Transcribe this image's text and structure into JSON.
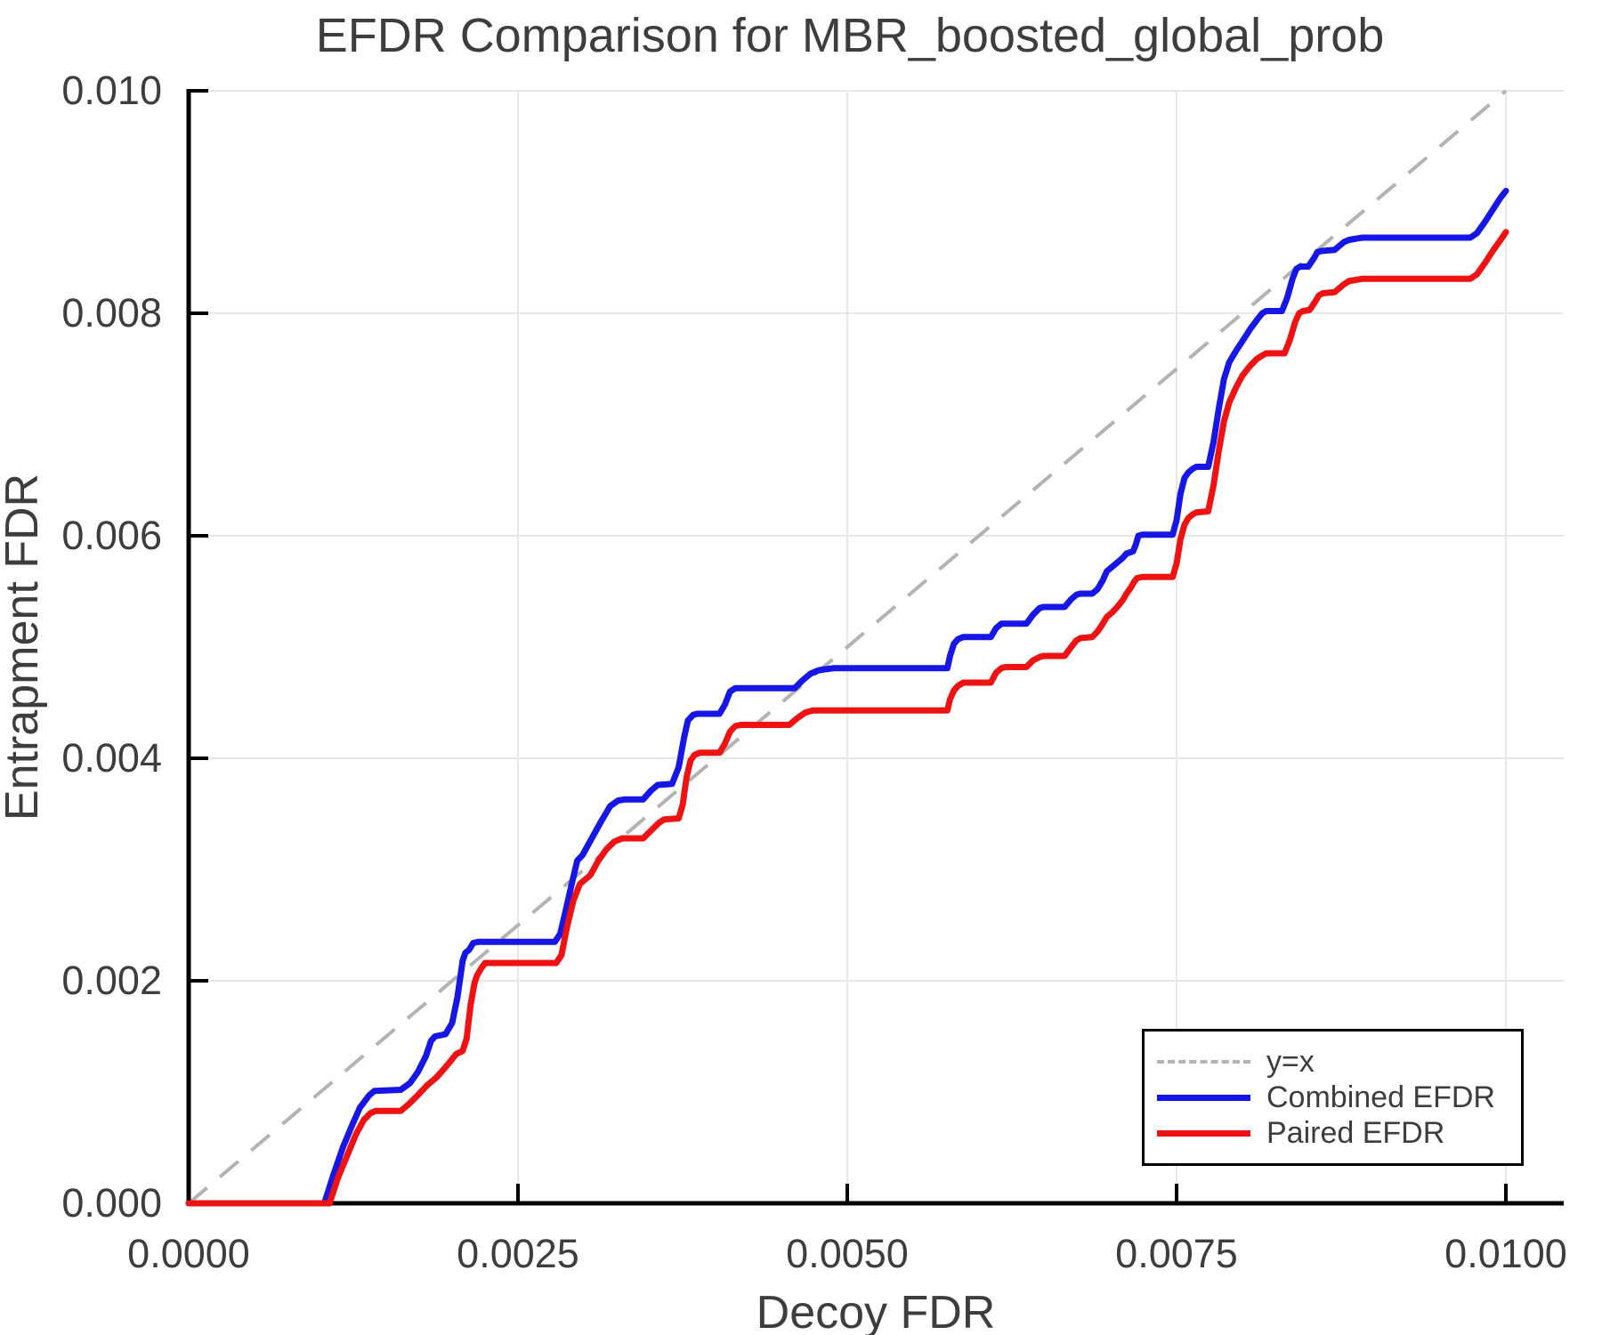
{
  "title": "EFDR Comparison for MBR_boosted_global_prob",
  "axes": {
    "xlabel": "Decoy FDR",
    "ylabel": "Entrapment FDR"
  },
  "legend": {
    "items": [
      {
        "label": "y=x",
        "color": "#b3b3b3",
        "style": "dashed"
      },
      {
        "label": "Combined EFDR",
        "color": "#1616e6",
        "style": "solid"
      },
      {
        "label": "Paired EFDR",
        "color": "#ef1212",
        "style": "solid"
      }
    ]
  },
  "colors": {
    "text": "#3d3d3d",
    "grid": "#e7e7e7",
    "spine": "#000000",
    "reference": "#b3b3b3",
    "combined": "#1616e6",
    "paired": "#ef1212"
  },
  "chart_data": {
    "type": "line",
    "title": "EFDR Comparison for MBR_boosted_global_prob",
    "xlabel": "Decoy FDR",
    "ylabel": "Entrapment FDR",
    "xlim": [
      0,
      0.01044
    ],
    "ylim": [
      0,
      0.01
    ],
    "grid": true,
    "legend_position": "bottom-right",
    "x_ticks": {
      "values": [
        0,
        0.0025,
        0.005,
        0.0075,
        0.01
      ],
      "labels": [
        "0.0000",
        "0.0025",
        "0.0050",
        "0.0075",
        "0.0100"
      ]
    },
    "y_ticks": {
      "values": [
        0,
        0.002,
        0.004,
        0.006,
        0.008,
        0.01
      ],
      "labels": [
        "0.000",
        "0.002",
        "0.004",
        "0.006",
        "0.008",
        "0.010"
      ]
    },
    "reference_line": {
      "name": "y=x",
      "from": [
        0,
        0
      ],
      "to": [
        0.01,
        0.01
      ],
      "color": "#b3b3b3",
      "dashed": true
    },
    "series": [
      {
        "name": "Combined EFDR",
        "color": "#1616e6",
        "points": [
          [
            0.0,
            0.0
          ],
          [
            0.00103,
            0.0
          ],
          [
            0.0011,
            0.00026
          ],
          [
            0.00117,
            0.0005
          ],
          [
            0.00124,
            0.0007
          ],
          [
            0.0013,
            0.00086
          ],
          [
            0.00137,
            0.00097
          ],
          [
            0.00141,
            0.00101
          ],
          [
            0.00161,
            0.00102
          ],
          [
            0.00168,
            0.00108
          ],
          [
            0.00174,
            0.00118
          ],
          [
            0.0018,
            0.00132
          ],
          [
            0.00184,
            0.00146
          ],
          [
            0.00187,
            0.0015
          ],
          [
            0.00195,
            0.00152
          ],
          [
            0.002,
            0.00162
          ],
          [
            0.00204,
            0.00185
          ],
          [
            0.00208,
            0.00218
          ],
          [
            0.0021,
            0.00225
          ],
          [
            0.00213,
            0.00228
          ],
          [
            0.00216,
            0.00234
          ],
          [
            0.0022,
            0.00235
          ],
          [
            0.00278,
            0.00235
          ],
          [
            0.00282,
            0.00242
          ],
          [
            0.00286,
            0.00262
          ],
          [
            0.00291,
            0.00288
          ],
          [
            0.00295,
            0.00308
          ],
          [
            0.00299,
            0.00313
          ],
          [
            0.00306,
            0.00328
          ],
          [
            0.00313,
            0.00343
          ],
          [
            0.0032,
            0.00357
          ],
          [
            0.00326,
            0.00362
          ],
          [
            0.00331,
            0.00363
          ],
          [
            0.00345,
            0.00363
          ],
          [
            0.00351,
            0.00371
          ],
          [
            0.00356,
            0.00376
          ],
          [
            0.00367,
            0.00377
          ],
          [
            0.00372,
            0.00392
          ],
          [
            0.00376,
            0.00418
          ],
          [
            0.00379,
            0.00434
          ],
          [
            0.00383,
            0.00439
          ],
          [
            0.00386,
            0.0044
          ],
          [
            0.00403,
            0.0044
          ],
          [
            0.00407,
            0.00448
          ],
          [
            0.00411,
            0.0046
          ],
          [
            0.00415,
            0.00463
          ],
          [
            0.0046,
            0.00463
          ],
          [
            0.00466,
            0.0047
          ],
          [
            0.00472,
            0.00476
          ],
          [
            0.00478,
            0.00479
          ],
          [
            0.00483,
            0.0048
          ],
          [
            0.0049,
            0.00481
          ],
          [
            0.00576,
            0.00481
          ],
          [
            0.00578,
            0.00492
          ],
          [
            0.00581,
            0.00503
          ],
          [
            0.00584,
            0.00507
          ],
          [
            0.00588,
            0.00509
          ],
          [
            0.00609,
            0.00509
          ],
          [
            0.00613,
            0.00517
          ],
          [
            0.00617,
            0.00521
          ],
          [
            0.00636,
            0.00521
          ],
          [
            0.00641,
            0.00529
          ],
          [
            0.00646,
            0.00535
          ],
          [
            0.00649,
            0.00536
          ],
          [
            0.00665,
            0.00536
          ],
          [
            0.0067,
            0.00543
          ],
          [
            0.00674,
            0.00547
          ],
          [
            0.00677,
            0.00548
          ],
          [
            0.00686,
            0.00548
          ],
          [
            0.0069,
            0.00552
          ],
          [
            0.00694,
            0.0056
          ],
          [
            0.00697,
            0.00568
          ],
          [
            0.00701,
            0.00572
          ],
          [
            0.00705,
            0.00576
          ],
          [
            0.00709,
            0.0058
          ],
          [
            0.00712,
            0.00584
          ],
          [
            0.00717,
            0.00586
          ],
          [
            0.00719,
            0.00592
          ],
          [
            0.00721,
            0.006
          ],
          [
            0.00724,
            0.00601
          ],
          [
            0.00747,
            0.00601
          ],
          [
            0.0075,
            0.00614
          ],
          [
            0.00753,
            0.00638
          ],
          [
            0.00756,
            0.00652
          ],
          [
            0.00759,
            0.00657
          ],
          [
            0.00762,
            0.0066
          ],
          [
            0.00765,
            0.00662
          ],
          [
            0.00774,
            0.00662
          ],
          [
            0.00778,
            0.00684
          ],
          [
            0.00782,
            0.00714
          ],
          [
            0.00786,
            0.00741
          ],
          [
            0.0079,
            0.00756
          ],
          [
            0.00795,
            0.00766
          ],
          [
            0.008,
            0.00775
          ],
          [
            0.00806,
            0.00786
          ],
          [
            0.00811,
            0.00794
          ],
          [
            0.00815,
            0.008
          ],
          [
            0.00818,
            0.00802
          ],
          [
            0.0083,
            0.00802
          ],
          [
            0.00834,
            0.00814
          ],
          [
            0.00838,
            0.00831
          ],
          [
            0.00841,
            0.0084
          ],
          [
            0.00844,
            0.00842
          ],
          [
            0.0085,
            0.00842
          ],
          [
            0.00854,
            0.00849
          ],
          [
            0.00857,
            0.00855
          ],
          [
            0.0086,
            0.00856
          ],
          [
            0.0087,
            0.00857
          ],
          [
            0.00874,
            0.00861
          ],
          [
            0.00877,
            0.00864
          ],
          [
            0.00881,
            0.00866
          ],
          [
            0.00886,
            0.00867
          ],
          [
            0.00891,
            0.00868
          ],
          [
            0.00973,
            0.00868
          ],
          [
            0.00978,
            0.00872
          ],
          [
            0.00984,
            0.00882
          ],
          [
            0.0099,
            0.00893
          ],
          [
            0.00996,
            0.00904
          ],
          [
            0.01,
            0.0091
          ]
        ]
      },
      {
        "name": "Paired EFDR",
        "color": "#ef1212",
        "points": [
          [
            0.0,
            0.0
          ],
          [
            0.00107,
            0.0
          ],
          [
            0.00113,
            0.00022
          ],
          [
            0.0012,
            0.00042
          ],
          [
            0.00127,
            0.00062
          ],
          [
            0.00133,
            0.00075
          ],
          [
            0.00138,
            0.00081
          ],
          [
            0.00142,
            0.00083
          ],
          [
            0.00161,
            0.00083
          ],
          [
            0.00167,
            0.00089
          ],
          [
            0.00173,
            0.00096
          ],
          [
            0.00181,
            0.00106
          ],
          [
            0.00188,
            0.00113
          ],
          [
            0.00194,
            0.00121
          ],
          [
            0.00199,
            0.00128
          ],
          [
            0.00203,
            0.00134
          ],
          [
            0.00208,
            0.00137
          ],
          [
            0.00211,
            0.00148
          ],
          [
            0.00214,
            0.00178
          ],
          [
            0.00217,
            0.00198
          ],
          [
            0.00219,
            0.00205
          ],
          [
            0.00222,
            0.00211
          ],
          [
            0.00225,
            0.00216
          ],
          [
            0.00279,
            0.00216
          ],
          [
            0.00283,
            0.00223
          ],
          [
            0.00287,
            0.00247
          ],
          [
            0.00292,
            0.00272
          ],
          [
            0.00297,
            0.00287
          ],
          [
            0.00301,
            0.00291
          ],
          [
            0.00305,
            0.00295
          ],
          [
            0.00311,
            0.00308
          ],
          [
            0.00317,
            0.00318
          ],
          [
            0.00323,
            0.00325
          ],
          [
            0.00329,
            0.00328
          ],
          [
            0.00345,
            0.00328
          ],
          [
            0.00351,
            0.00335
          ],
          [
            0.00357,
            0.00342
          ],
          [
            0.00361,
            0.00345
          ],
          [
            0.00372,
            0.00346
          ],
          [
            0.00375,
            0.00358
          ],
          [
            0.00378,
            0.00383
          ],
          [
            0.00381,
            0.00398
          ],
          [
            0.00384,
            0.00403
          ],
          [
            0.00388,
            0.00405
          ],
          [
            0.00403,
            0.00405
          ],
          [
            0.00407,
            0.00413
          ],
          [
            0.00411,
            0.00424
          ],
          [
            0.00415,
            0.00429
          ],
          [
            0.00419,
            0.0043
          ],
          [
            0.00456,
            0.0043
          ],
          [
            0.00462,
            0.00436
          ],
          [
            0.00468,
            0.00441
          ],
          [
            0.00474,
            0.00443
          ],
          [
            0.00576,
            0.00443
          ],
          [
            0.00578,
            0.00453
          ],
          [
            0.00581,
            0.00461
          ],
          [
            0.00584,
            0.00465
          ],
          [
            0.00588,
            0.00468
          ],
          [
            0.00609,
            0.00468
          ],
          [
            0.00613,
            0.00477
          ],
          [
            0.00617,
            0.00481
          ],
          [
            0.0062,
            0.00482
          ],
          [
            0.00636,
            0.00482
          ],
          [
            0.00641,
            0.00488
          ],
          [
            0.00646,
            0.00491
          ],
          [
            0.00649,
            0.00492
          ],
          [
            0.00665,
            0.00492
          ],
          [
            0.0067,
            0.005
          ],
          [
            0.00674,
            0.00506
          ],
          [
            0.00677,
            0.00508
          ],
          [
            0.00686,
            0.00509
          ],
          [
            0.0069,
            0.00514
          ],
          [
            0.00694,
            0.00521
          ],
          [
            0.00697,
            0.00527
          ],
          [
            0.00701,
            0.00531
          ],
          [
            0.00705,
            0.00536
          ],
          [
            0.00709,
            0.00542
          ],
          [
            0.00712,
            0.00548
          ],
          [
            0.00715,
            0.00553
          ],
          [
            0.00718,
            0.00559
          ],
          [
            0.0072,
            0.00562
          ],
          [
            0.00724,
            0.00563
          ],
          [
            0.00747,
            0.00563
          ],
          [
            0.0075,
            0.00575
          ],
          [
            0.00753,
            0.00597
          ],
          [
            0.00756,
            0.0061
          ],
          [
            0.00759,
            0.00616
          ],
          [
            0.00762,
            0.00619
          ],
          [
            0.00765,
            0.00621
          ],
          [
            0.00774,
            0.00622
          ],
          [
            0.00778,
            0.00645
          ],
          [
            0.00782,
            0.00676
          ],
          [
            0.00786,
            0.00703
          ],
          [
            0.0079,
            0.0072
          ],
          [
            0.00795,
            0.00733
          ],
          [
            0.008,
            0.00744
          ],
          [
            0.00806,
            0.00753
          ],
          [
            0.00811,
            0.00759
          ],
          [
            0.00815,
            0.00762
          ],
          [
            0.00818,
            0.00764
          ],
          [
            0.00832,
            0.00764
          ],
          [
            0.00836,
            0.00776
          ],
          [
            0.0084,
            0.00792
          ],
          [
            0.00843,
            0.008
          ],
          [
            0.00846,
            0.00802
          ],
          [
            0.00851,
            0.00803
          ],
          [
            0.00855,
            0.0081
          ],
          [
            0.00858,
            0.00816
          ],
          [
            0.00861,
            0.00818
          ],
          [
            0.0087,
            0.00819
          ],
          [
            0.00874,
            0.00823
          ],
          [
            0.00877,
            0.00826
          ],
          [
            0.00881,
            0.00829
          ],
          [
            0.00886,
            0.0083
          ],
          [
            0.00891,
            0.00831
          ],
          [
            0.00973,
            0.00831
          ],
          [
            0.00978,
            0.00835
          ],
          [
            0.00984,
            0.00845
          ],
          [
            0.0099,
            0.00856
          ],
          [
            0.00996,
            0.00866
          ],
          [
            0.01,
            0.00873
          ]
        ]
      }
    ]
  }
}
